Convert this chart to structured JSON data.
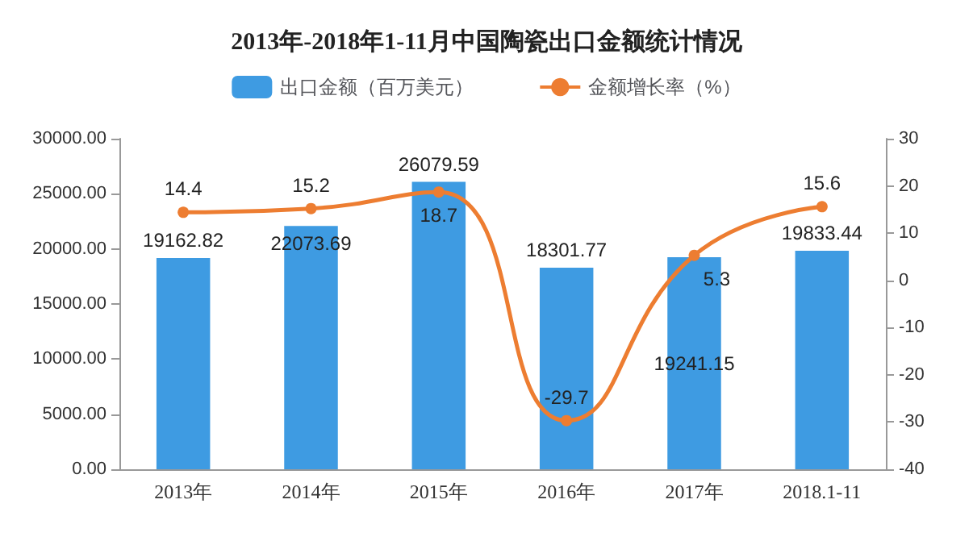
{
  "chart_data": {
    "type": "bar",
    "title": "2013年-2018年1-11月中国陶瓷出口金额统计情况",
    "categories": [
      "2013年",
      "2014年",
      "2015年",
      "2016年",
      "2017年",
      "2018.1-11"
    ],
    "series": [
      {
        "name": "出口金额（百万美元）",
        "color": "#3e9be2",
        "values": [
          19162.82,
          22073.69,
          26079.59,
          18301.77,
          19241.15,
          19833.44
        ]
      },
      {
        "name": "金额增长率（%）",
        "type": "line",
        "axis": "y2",
        "color": "#ed7d31",
        "values": [
          14.4,
          15.2,
          18.7,
          -29.7,
          5.3,
          15.6
        ]
      }
    ],
    "ylim": [
      0,
      30000
    ],
    "yticks": [
      {
        "value": 0,
        "label": "0.00"
      },
      {
        "value": 5000,
        "label": "5000.00"
      },
      {
        "value": 10000,
        "label": "10000.00"
      },
      {
        "value": 15000,
        "label": "15000.00"
      },
      {
        "value": 20000,
        "label": "20000.00"
      },
      {
        "value": 25000,
        "label": "25000.00"
      },
      {
        "value": 30000,
        "label": "30000.00"
      }
    ],
    "y2lim": [
      -40,
      30
    ],
    "y2ticks": [
      -40,
      -30,
      -20,
      -10,
      0,
      10,
      20,
      30
    ],
    "data_labels": true,
    "legend": "top",
    "grid": false,
    "marker": "circle"
  }
}
